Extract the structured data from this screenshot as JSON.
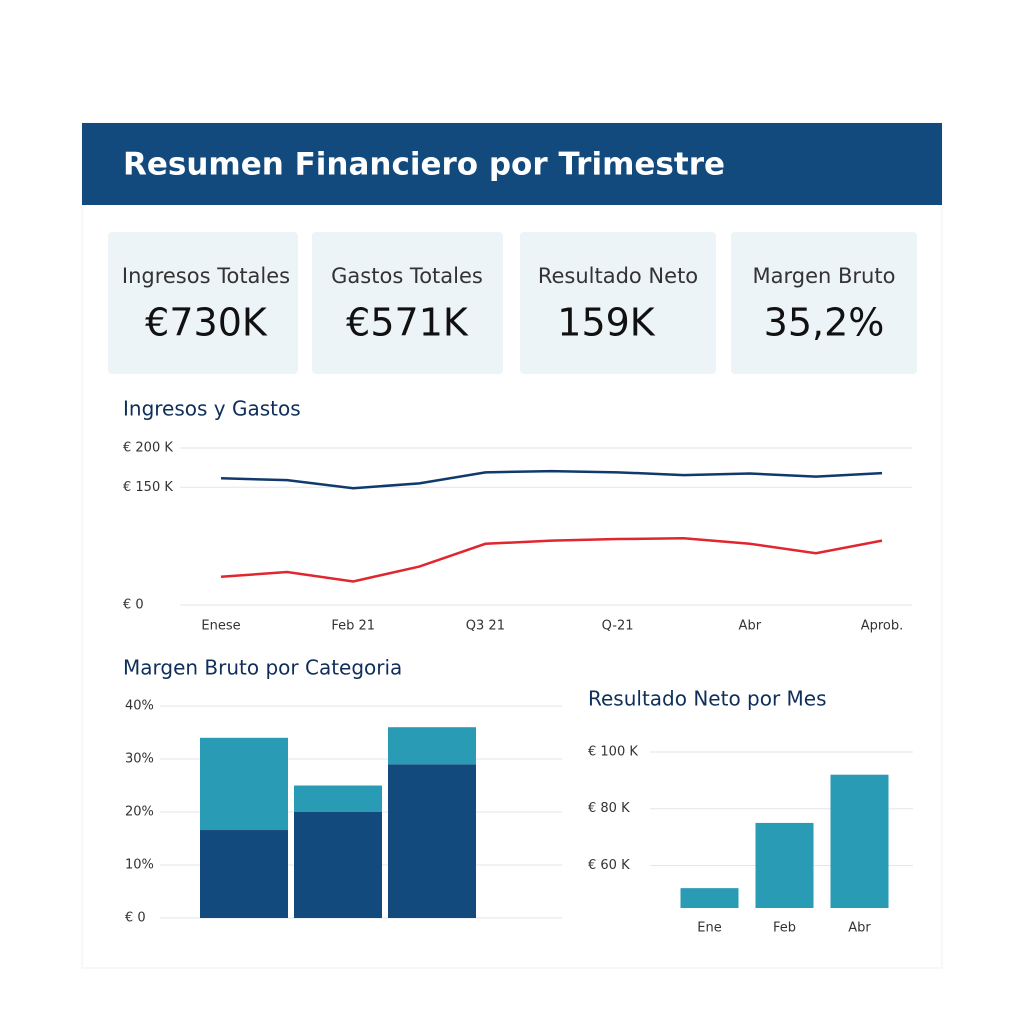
{
  "header": {
    "title": "Resumen Financiero por Trimestre"
  },
  "kpis": [
    {
      "label": "Ingresos Totales",
      "value": "€730K"
    },
    {
      "label": "Gastos Totales",
      "value": "€571K"
    },
    {
      "label": "Resultado Neto",
      "value": "159K"
    },
    {
      "label": "Margen Bruto",
      "value": "35,2%"
    }
  ],
  "chart_data": [
    {
      "type": "line",
      "title": "Ingresos y Gastos",
      "categories": [
        "Enese",
        null,
        "Feb 21",
        null,
        "Q3 21",
        null,
        "Q-21",
        null,
        "Abr",
        null,
        "Aprob."
      ],
      "series": [
        {
          "color": "#0f3a6b",
          "values": [
            161.5,
            159,
            148.7,
            155,
            169,
            170.5,
            169,
            165.5,
            167.5,
            163.5,
            168
          ]
        },
        {
          "color": "#e0262e",
          "values": [
            36,
            42,
            30,
            49,
            78,
            82,
            84,
            85,
            78,
            66,
            82
          ]
        }
      ],
      "ylim": [
        0,
        200
      ],
      "yticks": [
        {
          "value": 0,
          "label": "€ 0"
        },
        {
          "value": 150,
          "label": "€ 150 K"
        },
        {
          "value": 200,
          "label": "€ 200 K"
        }
      ],
      "grid": true
    },
    {
      "type": "bar",
      "title": "Margen Bruto por Categoria",
      "stacked": true,
      "categories": [
        null,
        null,
        null
      ],
      "series": [
        {
          "color": "#124a7e",
          "values": [
            16.6,
            20,
            29
          ]
        },
        {
          "color": "#2a9bb5",
          "values": [
            17.4,
            5,
            7
          ]
        }
      ],
      "ylim": [
        0,
        40
      ],
      "yticks": [
        {
          "value": 0,
          "label": "€ 0"
        },
        {
          "value": 10,
          "label": "10%"
        },
        {
          "value": 20,
          "label": "20%"
        },
        {
          "value": 30,
          "label": "30%"
        },
        {
          "value": 40,
          "label": "40%"
        }
      ],
      "grid": true
    },
    {
      "type": "bar",
      "title": "Resultado Neto por Mes",
      "categories": [
        "Ene",
        "Feb",
        "Abr"
      ],
      "series": [
        {
          "color": "#2a9bb5",
          "values": [
            52,
            75,
            92
          ]
        }
      ],
      "ylim": [
        45,
        100
      ],
      "yticks": [
        {
          "value": 100,
          "label": "€ 100 K"
        },
        {
          "value": 60,
          "label": "€ 60 K"
        },
        {
          "value": 80,
          "label": "€ 80 K"
        }
      ],
      "grid": true
    }
  ]
}
